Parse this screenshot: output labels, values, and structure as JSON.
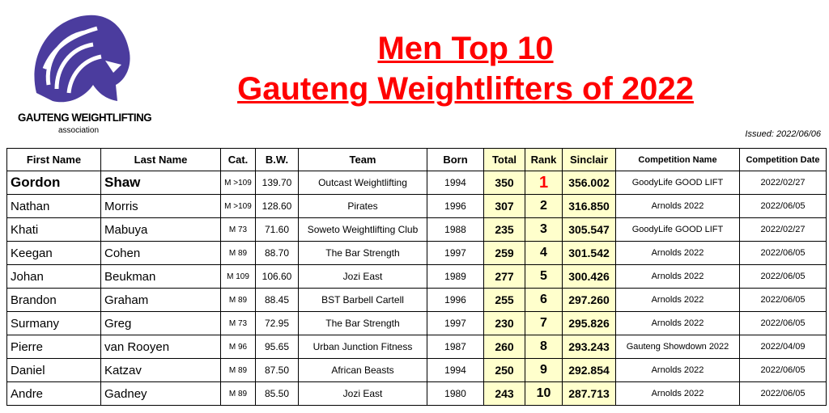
{
  "logo": {
    "name": "GAUTENG WEIGHTLIFTING",
    "subtitle": "association"
  },
  "title": {
    "line1": "Men Top 10",
    "line2": "Gauteng Weightlifters of 2022"
  },
  "issued": "Issued: 2022/06/06",
  "table": {
    "header": [
      "First Name",
      "Last Name",
      "Cat.",
      "B.W.",
      "Team",
      "Born",
      "Total",
      "Rank",
      "Sinclair",
      "Competition Name",
      "Competition Date"
    ],
    "rows": [
      [
        "Gordon",
        "Shaw",
        "M >109",
        "139.70",
        "Outcast Weightlifting",
        "1994",
        "350",
        "1",
        "356.002",
        "GoodyLife GOOD LIFT",
        "2022/02/27"
      ],
      [
        "Nathan",
        "Morris",
        "M >109",
        "128.60",
        "Pirates",
        "1996",
        "307",
        "2",
        "316.850",
        "Arnolds 2022",
        "2022/06/05"
      ],
      [
        "Khati",
        "Mabuya",
        "M 73",
        "71.60",
        "Soweto Weightlifting Club",
        "1988",
        "235",
        "3",
        "305.547",
        "GoodyLife GOOD LIFT",
        "2022/02/27"
      ],
      [
        "Keegan",
        "Cohen",
        "M 89",
        "88.70",
        "The Bar Strength",
        "1997",
        "259",
        "4",
        "301.542",
        "Arnolds 2022",
        "2022/06/05"
      ],
      [
        "Johan",
        "Beukman",
        "M 109",
        "106.60",
        "Jozi East",
        "1989",
        "277",
        "5",
        "300.426",
        "Arnolds 2022",
        "2022/06/05"
      ],
      [
        "Brandon",
        "Graham",
        "M 89",
        "88.45",
        "BST Barbell Cartell",
        "1996",
        "255",
        "6",
        "297.260",
        "Arnolds 2022",
        "2022/06/05"
      ],
      [
        "Surmany",
        "Greg",
        "M 73",
        "72.95",
        "The Bar Strength",
        "1997",
        "230",
        "7",
        "295.826",
        "Arnolds 2022",
        "2022/06/05"
      ],
      [
        "Pierre",
        "van Rooyen",
        "M 96",
        "95.65",
        "Urban Junction Fitness",
        "1987",
        "260",
        "8",
        "293.243",
        "Gauteng Showdown 2022",
        "2022/04/09"
      ],
      [
        "Daniel",
        "Katzav",
        "M 89",
        "87.50",
        "African Beasts",
        "1994",
        "250",
        "9",
        "292.854",
        "Arnolds 2022",
        "2022/06/05"
      ],
      [
        "Andre",
        "Gadney",
        "M 89",
        "85.50",
        "Jozi East",
        "1980",
        "243",
        "10",
        "287.713",
        "Arnolds 2022",
        "2022/06/05"
      ]
    ]
  }
}
